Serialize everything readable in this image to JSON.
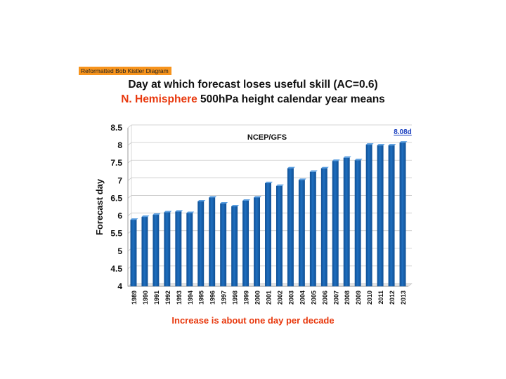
{
  "header": {
    "tag_label": "Reformatted Bob Kistler Diagram",
    "title_line1": "Day at which forecast loses useful skill (AC=0.6)",
    "title_line2_highlight": "N. Hemisphere",
    "title_line2_rest": " 500hPa height calendar year means"
  },
  "footer": {
    "caption": "Increase is about one day per decade"
  },
  "colors": {
    "tag_bg": "#f7941d",
    "highlight": "#e8380d",
    "caption": "#e8380d",
    "bar_fill": "#1f6fbf",
    "bar_dark": "#0f4f94",
    "annotation": "#1a3fbf",
    "grid": "#c8c8c8"
  },
  "chart_data": {
    "type": "bar",
    "title": "NCEP/GFS",
    "xlabel": "",
    "ylabel": "Forecast day",
    "ylim": [
      4,
      8.5
    ],
    "yticks": [
      "4",
      "4.5",
      "5",
      "5.5",
      "6",
      "6.5",
      "7",
      "7.5",
      "8",
      "8.5"
    ],
    "grid": true,
    "categories": [
      "1989",
      "1990",
      "1991",
      "1992",
      "1993",
      "1994",
      "1995",
      "1996",
      "1997",
      "1998",
      "1999",
      "2000",
      "2001",
      "2002",
      "2003",
      "2004",
      "2005",
      "2006",
      "2007",
      "2008",
      "2009",
      "2010",
      "2011",
      "2012",
      "2013"
    ],
    "values": [
      5.89,
      5.97,
      6.03,
      6.1,
      6.12,
      6.08,
      6.41,
      6.52,
      6.35,
      6.27,
      6.43,
      6.52,
      6.93,
      6.85,
      7.35,
      7.02,
      7.25,
      7.35,
      7.56,
      7.65,
      7.58,
      8.02,
      8.0,
      8.0,
      8.08
    ],
    "annotation": "8.08d"
  }
}
